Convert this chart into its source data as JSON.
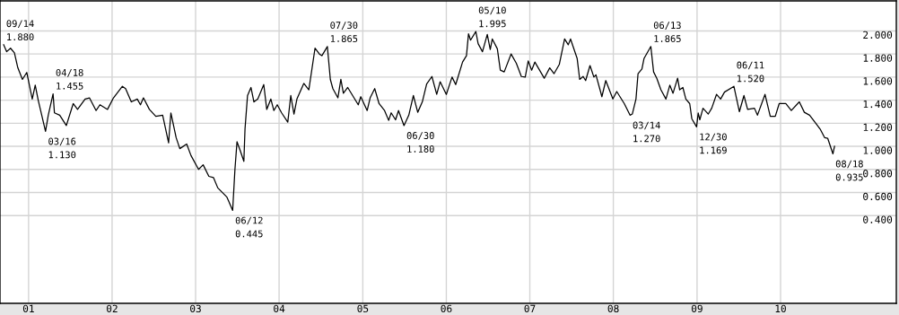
{
  "chart_data": {
    "type": "line",
    "color": "#000000",
    "x": [
      "2000-09-14",
      "2000-09-27",
      "2000-10-14",
      "2000-10-31",
      "2000-11-15",
      "2000-12-05",
      "2000-12-24",
      "2001-01-17",
      "2001-01-30",
      "2001-02-12",
      "2001-03-16",
      "2001-03-28",
      "2001-04-18",
      "2001-04-24",
      "2001-05-17",
      "2001-06-15",
      "2001-07-15",
      "2001-08-03",
      "2001-09-05",
      "2001-09-24",
      "2001-10-23",
      "2001-11-09",
      "2001-12-12",
      "2002-01-07",
      "2002-02-15",
      "2002-03-01",
      "2002-03-26",
      "2002-04-21",
      "2002-05-05",
      "2002-05-18",
      "2002-06-13",
      "2002-07-11",
      "2002-08-10",
      "2002-09-05",
      "2002-09-15",
      "2002-10-08",
      "2002-10-24",
      "2002-11-23",
      "2002-12-12",
      "2003-01-14",
      "2003-02-03",
      "2003-02-28",
      "2003-03-20",
      "2003-04-08",
      "2003-05-18",
      "2003-06-12",
      "2003-06-22",
      "2003-07-01",
      "2003-07-14",
      "2003-07-31",
      "2003-08-05",
      "2003-08-16",
      "2003-08-31",
      "2003-09-13",
      "2003-09-30",
      "2003-10-26",
      "2003-11-08",
      "2003-11-26",
      "2003-12-09",
      "2003-12-24",
      "2004-01-12",
      "2004-02-08",
      "2004-02-21",
      "2004-03-06",
      "2004-03-19",
      "2004-04-18",
      "2004-05-10",
      "2004-06-06",
      "2004-06-25",
      "2004-07-06",
      "2004-07-30",
      "2004-08-12",
      "2004-08-23",
      "2004-09-14",
      "2004-09-27",
      "2004-10-08",
      "2004-10-27",
      "2004-12-12",
      "2004-12-23",
      "2005-01-20",
      "2005-02-02",
      "2005-02-22",
      "2005-03-13",
      "2005-04-06",
      "2005-04-24",
      "2005-05-05",
      "2005-05-24",
      "2005-06-06",
      "2005-06-30",
      "2005-07-21",
      "2005-08-10",
      "2005-08-29",
      "2005-09-18",
      "2005-10-07",
      "2005-10-30",
      "2005-11-20",
      "2005-12-05",
      "2006-01-01",
      "2006-01-26",
      "2006-02-11",
      "2006-03-13",
      "2006-03-30",
      "2006-04-08",
      "2006-04-17",
      "2006-05-10",
      "2006-05-20",
      "2006-06-08",
      "2006-06-29",
      "2006-07-12",
      "2006-07-21",
      "2006-08-12",
      "2006-08-25",
      "2006-09-11",
      "2006-10-11",
      "2006-11-03",
      "2006-11-25",
      "2006-12-12",
      "2006-12-25",
      "2007-01-09",
      "2007-01-23",
      "2007-03-05",
      "2007-03-29",
      "2007-04-17",
      "2007-05-10",
      "2007-06-02",
      "2007-06-18",
      "2007-06-28",
      "2007-07-27",
      "2007-08-07",
      "2007-08-22",
      "2007-09-02",
      "2007-09-21",
      "2007-10-08",
      "2007-10-17",
      "2007-11-06",
      "2007-11-12",
      "2007-11-29",
      "2007-12-30",
      "2008-01-16",
      "2008-02-18",
      "2008-03-14",
      "2008-03-24",
      "2008-04-09",
      "2008-04-18",
      "2008-05-05",
      "2008-05-14",
      "2008-06-13",
      "2008-06-25",
      "2008-07-09",
      "2008-07-27",
      "2008-08-18",
      "2008-09-04",
      "2008-09-18",
      "2008-10-08",
      "2008-10-17",
      "2008-10-31",
      "2008-11-13",
      "2008-11-30",
      "2008-12-09",
      "2008-12-30",
      "2009-01-06",
      "2009-01-13",
      "2009-01-27",
      "2009-02-19",
      "2009-03-06",
      "2009-03-27",
      "2009-04-14",
      "2009-05-01",
      "2009-06-11",
      "2009-07-05",
      "2009-07-25",
      "2009-08-10",
      "2009-09-09",
      "2009-09-22",
      "2009-10-25",
      "2009-11-17",
      "2009-12-09",
      "2009-12-26",
      "2010-01-24",
      "2010-02-17",
      "2010-03-24",
      "2010-04-15",
      "2010-05-08",
      "2010-06-04",
      "2010-06-23",
      "2010-07-13",
      "2010-07-26",
      "2010-08-18",
      "2010-08-25"
    ],
    "values": [
      1.88,
      1.82,
      1.85,
      1.81,
      1.68,
      1.58,
      1.64,
      1.41,
      1.53,
      1.4,
      1.13,
      1.27,
      1.455,
      1.29,
      1.27,
      1.18,
      1.37,
      1.32,
      1.41,
      1.42,
      1.31,
      1.36,
      1.32,
      1.42,
      1.52,
      1.5,
      1.385,
      1.41,
      1.36,
      1.42,
      1.32,
      1.26,
      1.27,
      1.03,
      1.29,
      1.075,
      0.98,
      1.02,
      0.92,
      0.8,
      0.84,
      0.74,
      0.73,
      0.64,
      0.56,
      0.445,
      0.8,
      1.04,
      0.97,
      0.87,
      1.15,
      1.44,
      1.51,
      1.385,
      1.41,
      1.535,
      1.32,
      1.41,
      1.31,
      1.36,
      1.29,
      1.21,
      1.44,
      1.28,
      1.41,
      1.545,
      1.49,
      1.85,
      1.8,
      1.785,
      1.865,
      1.58,
      1.5,
      1.42,
      1.58,
      1.46,
      1.51,
      1.36,
      1.43,
      1.31,
      1.42,
      1.5,
      1.37,
      1.31,
      1.225,
      1.29,
      1.23,
      1.31,
      1.18,
      1.27,
      1.44,
      1.295,
      1.385,
      1.54,
      1.605,
      1.45,
      1.56,
      1.45,
      1.6,
      1.535,
      1.73,
      1.785,
      1.975,
      1.92,
      1.995,
      1.89,
      1.82,
      1.97,
      1.84,
      1.93,
      1.845,
      1.66,
      1.645,
      1.8,
      1.72,
      1.605,
      1.6,
      1.74,
      1.66,
      1.73,
      1.59,
      1.68,
      1.63,
      1.71,
      1.93,
      1.88,
      1.93,
      1.76,
      1.58,
      1.605,
      1.57,
      1.7,
      1.6,
      1.62,
      1.475,
      1.43,
      1.57,
      1.41,
      1.475,
      1.37,
      1.27,
      1.28,
      1.41,
      1.63,
      1.67,
      1.76,
      1.865,
      1.645,
      1.59,
      1.49,
      1.41,
      1.53,
      1.46,
      1.59,
      1.49,
      1.51,
      1.41,
      1.37,
      1.24,
      1.169,
      1.29,
      1.23,
      1.33,
      1.28,
      1.33,
      1.45,
      1.41,
      1.47,
      1.52,
      1.3,
      1.44,
      1.32,
      1.33,
      1.27,
      1.45,
      1.26,
      1.26,
      1.37,
      1.37,
      1.31,
      1.385,
      1.295,
      1.27,
      1.2,
      1.15,
      1.075,
      1.07,
      0.935,
      1.0
    ],
    "xlim": [
      "2000-08-29",
      "2011-05-22"
    ],
    "xticks": [
      {
        "value": "2001-01-01",
        "label": "01"
      },
      {
        "value": "2002-01-01",
        "label": "02"
      },
      {
        "value": "2003-01-01",
        "label": "03"
      },
      {
        "value": "2004-01-01",
        "label": "04"
      },
      {
        "value": "2005-01-01",
        "label": "05"
      },
      {
        "value": "2006-01-01",
        "label": "06"
      },
      {
        "value": "2007-01-01",
        "label": "07"
      },
      {
        "value": "2008-01-01",
        "label": "08"
      },
      {
        "value": "2009-01-01",
        "label": "09"
      },
      {
        "value": "2010-01-01",
        "label": "10"
      }
    ],
    "ylim": [
      -0.36,
      2.26
    ],
    "yticks": [
      {
        "value": 0.4,
        "label": "0.400"
      },
      {
        "value": 0.6,
        "label": "0.600"
      },
      {
        "value": 0.8,
        "label": "0.800"
      },
      {
        "value": 1.0,
        "label": "1.000"
      },
      {
        "value": 1.2,
        "label": "1.200"
      },
      {
        "value": 1.4,
        "label": "1.400"
      },
      {
        "value": 1.6,
        "label": "1.600"
      },
      {
        "value": 1.8,
        "label": "1.800"
      },
      {
        "value": 2.0,
        "label": "2.000"
      }
    ],
    "grid": true,
    "marker": "none",
    "line_style": "solid",
    "annotations": [
      {
        "text": "09/14\n1.880",
        "x": "2000-09-14",
        "y": 1.88
      },
      {
        "text": "03/16\n1.130",
        "x": "2001-03-16",
        "y": 1.13
      },
      {
        "text": "04/18\n1.455",
        "x": "2001-04-18",
        "y": 1.455
      },
      {
        "text": "06/12\n0.445",
        "x": "2003-06-12",
        "y": 0.445
      },
      {
        "text": "07/30\n1.865",
        "x": "2004-07-30",
        "y": 1.865
      },
      {
        "text": "06/30\n1.180",
        "x": "2005-06-30",
        "y": 1.18
      },
      {
        "text": "05/10\n1.995",
        "x": "2006-05-10",
        "y": 1.995
      },
      {
        "text": "03/14\n1.270",
        "x": "2008-03-14",
        "y": 1.27
      },
      {
        "text": "06/13\n1.865",
        "x": "2008-06-13",
        "y": 1.865
      },
      {
        "text": "12/30\n1.169",
        "x": "2008-12-30",
        "y": 1.169
      },
      {
        "text": "06/11\n1.520",
        "x": "2009-06-11",
        "y": 1.52
      },
      {
        "text": "08/18\n0.935",
        "x": "2010-08-18",
        "y": 0.935
      }
    ]
  }
}
